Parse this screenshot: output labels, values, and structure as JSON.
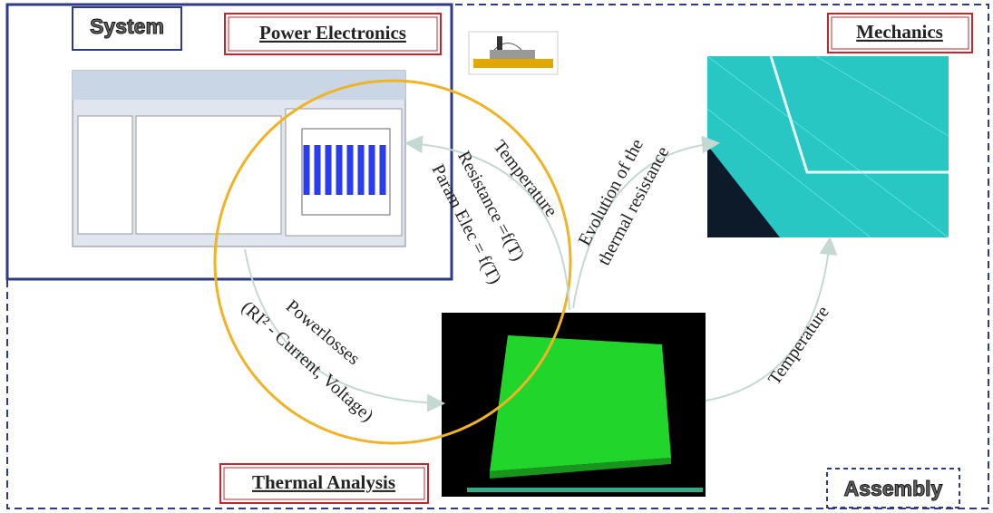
{
  "boxes": {
    "system": "System",
    "power_electronics": "Power Electronics",
    "mechanics": "Mechanics",
    "thermal_analysis": "Thermal Analysis",
    "assembly": "Assembly"
  },
  "arrows": [
    {
      "lines": [
        "Temperature",
        "Resistance =f(T)",
        "Param Elec = f(T)"
      ]
    },
    {
      "lines": [
        "Evolution of the",
        "thermal resistance"
      ]
    },
    {
      "lines": [
        "Powerlosses",
        "(RI² - Current, Voltage)"
      ]
    },
    {
      "lines": [
        "Temperature"
      ]
    }
  ]
}
